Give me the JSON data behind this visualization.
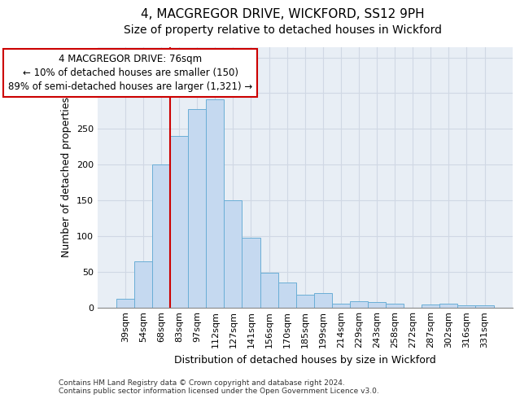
{
  "title": "4, MACGREGOR DRIVE, WICKFORD, SS12 9PH",
  "subtitle": "Size of property relative to detached houses in Wickford",
  "xlabel": "Distribution of detached houses by size in Wickford",
  "ylabel": "Number of detached properties",
  "footnote": "Contains HM Land Registry data © Crown copyright and database right 2024.\nContains public sector information licensed under the Open Government Licence v3.0.",
  "categories": [
    "39sqm",
    "54sqm",
    "68sqm",
    "83sqm",
    "97sqm",
    "112sqm",
    "127sqm",
    "141sqm",
    "156sqm",
    "170sqm",
    "185sqm",
    "199sqm",
    "214sqm",
    "229sqm",
    "243sqm",
    "258sqm",
    "272sqm",
    "287sqm",
    "302sqm",
    "316sqm",
    "331sqm"
  ],
  "values": [
    12,
    65,
    200,
    240,
    278,
    291,
    150,
    97,
    49,
    35,
    18,
    20,
    5,
    8,
    7,
    5,
    0,
    4,
    5,
    3,
    3
  ],
  "bar_color": "#c5d9f0",
  "bar_edge_color": "#6aaed6",
  "bar_edge_width": 0.7,
  "vline_color": "#cc0000",
  "vline_x": 2.5,
  "vline_linewidth": 1.5,
  "annotation_text": "4 MACGREGOR DRIVE: 76sqm\n← 10% of detached houses are smaller (150)\n89% of semi-detached houses are larger (1,321) →",
  "ylim": [
    0,
    365
  ],
  "yticks": [
    0,
    50,
    100,
    150,
    200,
    250,
    300,
    350
  ],
  "grid_color": "#d0d8e4",
  "bg_color": "#e8eef5",
  "title_fontsize": 11,
  "subtitle_fontsize": 10,
  "xlabel_fontsize": 9,
  "ylabel_fontsize": 9,
  "tick_fontsize": 8,
  "annotation_fontsize": 8.5,
  "footnote_fontsize": 6.5
}
